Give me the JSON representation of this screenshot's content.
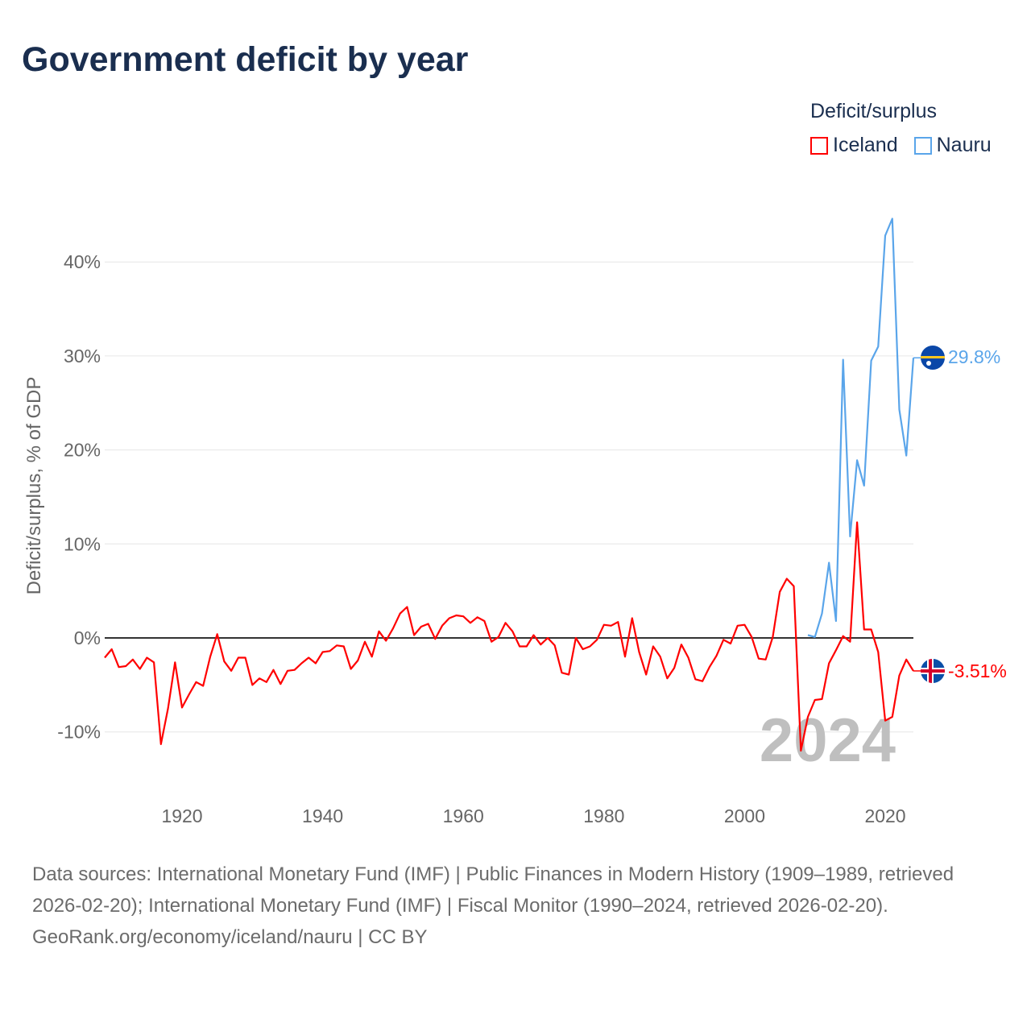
{
  "title": "Government deficit by year",
  "legend": {
    "title": "Deficit/surplus",
    "items": [
      {
        "name": "Iceland",
        "color": "#ff0000"
      },
      {
        "name": "Nauru",
        "color": "#5aa5ea"
      }
    ]
  },
  "watermark_year": "2024",
  "footer": {
    "sources": "Data sources: International Monetary Fund (IMF) | Public Finances in Modern History (1909–1989, retrieved 2026-02-20); International Monetary Fund (IMF) | Fiscal Monitor (1990–2024, retrieved 2026-02-20).",
    "credit": "GeoRank.org/economy/iceland/nauru | CC BY"
  },
  "chart_data": {
    "type": "line",
    "title": "Government deficit by year",
    "xlabel": "",
    "ylabel": "Deficit/surplus, % of GDP",
    "xlim": [
      1909,
      2024
    ],
    "ylim": [
      -15,
      50
    ],
    "x_ticks": [
      1920,
      1940,
      1960,
      1980,
      2000,
      2020
    ],
    "y_ticks": [
      -10,
      0,
      10,
      20,
      30,
      40
    ],
    "y_tick_labels": [
      "-10%",
      "0%",
      "10%",
      "20%",
      "30%",
      "40%"
    ],
    "grid": true,
    "legend_position": "top-right",
    "series": [
      {
        "name": "Iceland",
        "color": "#ff0000",
        "start_year": 1909,
        "end_label": "-3.51%",
        "values": [
          -2.1,
          -1.2,
          -3.1,
          -3.0,
          -2.3,
          -3.3,
          -2.1,
          -2.6,
          -11.3,
          -7.5,
          -2.6,
          -7.4,
          -6.0,
          -4.7,
          -5.1,
          -2.0,
          0.4,
          -2.5,
          -3.5,
          -2.1,
          -2.1,
          -5.0,
          -4.3,
          -4.7,
          -3.4,
          -4.9,
          -3.5,
          -3.4,
          -2.7,
          -2.1,
          -2.7,
          -1.5,
          -1.4,
          -0.8,
          -0.9,
          -3.3,
          -2.4,
          -0.4,
          -2.0,
          0.7,
          -0.3,
          1.0,
          2.6,
          3.3,
          0.3,
          1.2,
          1.5,
          -0.1,
          1.3,
          2.1,
          2.4,
          2.3,
          1.6,
          2.2,
          1.8,
          -0.4,
          0.1,
          1.6,
          0.7,
          -0.9,
          -0.9,
          0.3,
          -0.7,
          0.0,
          -0.8,
          -3.7,
          -3.9,
          0.0,
          -1.2,
          -0.9,
          -0.2,
          1.4,
          1.3,
          1.7,
          -2.0,
          2.1,
          -1.5,
          -3.9,
          -0.9,
          -2.0,
          -4.3,
          -3.2,
          -0.7,
          -2.1,
          -4.4,
          -4.6,
          -3.1,
          -1.9,
          -0.2,
          -0.6,
          1.3,
          1.4,
          0.1,
          -2.2,
          -2.3,
          0.1,
          4.9,
          6.3,
          5.5,
          -12.0,
          -8.4,
          -6.6,
          -6.5,
          -2.7,
          -1.3,
          0.2,
          -0.4,
          12.3,
          0.9,
          0.9,
          -1.5,
          -8.8,
          -8.4,
          -4.0,
          -2.3,
          -3.51
        ]
      },
      {
        "name": "Nauru",
        "color": "#5aa5ea",
        "start_year": 2009,
        "end_label": "29.8%",
        "values": [
          0.3,
          0.1,
          2.6,
          8.0,
          1.8,
          29.6,
          10.8,
          18.9,
          16.2,
          29.5,
          31.0,
          42.8,
          44.6,
          24.3,
          19.4,
          29.8
        ]
      }
    ]
  }
}
